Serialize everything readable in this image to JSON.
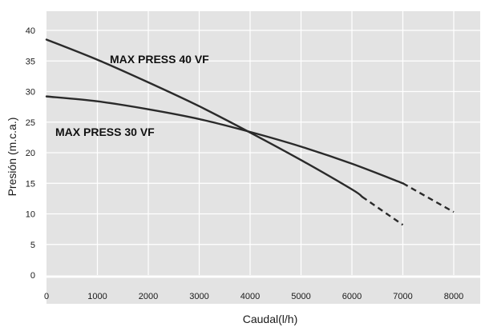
{
  "chart_data": {
    "type": "line",
    "xlabel": "Caudal(l/h)",
    "ylabel": "Presión (m.c.a.)",
    "xlim": [
      0,
      8000
    ],
    "ylim": [
      0,
      42
    ],
    "x_ticks": [
      0,
      1000,
      2000,
      3000,
      4000,
      5000,
      6000,
      7000,
      8000
    ],
    "y_ticks": [
      0,
      5,
      10,
      15,
      20,
      25,
      30,
      35,
      40
    ],
    "grid": true,
    "colors": {
      "background": "#e3e3e3",
      "grid": "#ffffff",
      "line": "#2a2a2a"
    },
    "series": [
      {
        "name": "MAX PRESS 40 VF",
        "points": [
          [
            0,
            38.5
          ],
          [
            1000,
            35.2
          ],
          [
            2000,
            31.5
          ],
          [
            3000,
            27.6
          ],
          [
            4000,
            23.3
          ],
          [
            5000,
            18.8
          ],
          [
            6000,
            14.0
          ],
          [
            6200,
            12.8
          ]
        ],
        "dashed_points": [
          [
            6200,
            12.8
          ],
          [
            7000,
            8.2
          ]
        ]
      },
      {
        "name": "MAX PRESS 30 VF",
        "points": [
          [
            0,
            29.2
          ],
          [
            1000,
            28.4
          ],
          [
            2000,
            27.1
          ],
          [
            3000,
            25.5
          ],
          [
            4000,
            23.4
          ],
          [
            5000,
            21.0
          ],
          [
            6000,
            18.2
          ],
          [
            7000,
            15.0
          ]
        ],
        "dashed_points": [
          [
            7000,
            15.0
          ],
          [
            8000,
            10.3
          ]
        ]
      }
    ],
    "annotations": [
      {
        "text": "MAX PRESS 40 VF",
        "series": 0
      },
      {
        "text": "MAX PRESS 30 VF",
        "series": 1
      }
    ]
  }
}
